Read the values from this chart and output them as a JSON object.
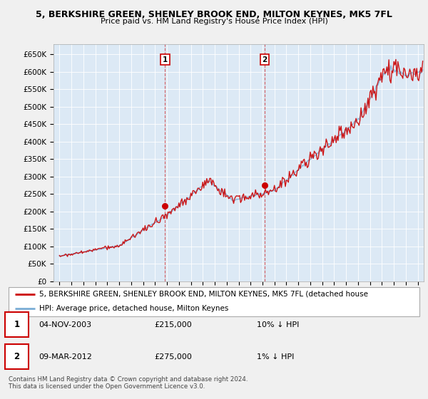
{
  "title_line1": "5, BERKSHIRE GREEN, SHENLEY BROOK END, MILTON KEYNES, MK5 7FL",
  "title_line2": "Price paid vs. HM Land Registry's House Price Index (HPI)",
  "ylabel_values": [
    "£0",
    "£50K",
    "£100K",
    "£150K",
    "£200K",
    "£250K",
    "£300K",
    "£350K",
    "£400K",
    "£450K",
    "£500K",
    "£550K",
    "£600K",
    "£650K"
  ],
  "yticks": [
    0,
    50000,
    100000,
    150000,
    200000,
    250000,
    300000,
    350000,
    400000,
    450000,
    500000,
    550000,
    600000,
    650000
  ],
  "ylim": [
    0,
    680000
  ],
  "xlim_min": 1994.5,
  "xlim_max": 2025.5,
  "sale_year1": 2003.84,
  "sale_year2": 2012.17,
  "sale_price1": 215000,
  "sale_price2": 275000,
  "annotation1_date": "04-NOV-2003",
  "annotation1_price": "£215,000",
  "annotation1_hpi": "10% ↓ HPI",
  "annotation2_date": "09-MAR-2012",
  "annotation2_price": "£275,000",
  "annotation2_hpi": "1% ↓ HPI",
  "legend_line1": "5, BERKSHIRE GREEN, SHENLEY BROOK END, MILTON KEYNES, MK5 7FL (detached house",
  "legend_line2": "HPI: Average price, detached house, Milton Keynes",
  "footer": "Contains HM Land Registry data © Crown copyright and database right 2024.\nThis data is licensed under the Open Government Licence v3.0.",
  "price_color": "#cc0000",
  "hpi_color": "#7aaed6",
  "fig_bg_color": "#f0f0f0",
  "plot_bg_color": "#dce9f5",
  "grid_color": "#ffffff",
  "vline_color": "#cc0000",
  "label_box_color": "#cc0000"
}
